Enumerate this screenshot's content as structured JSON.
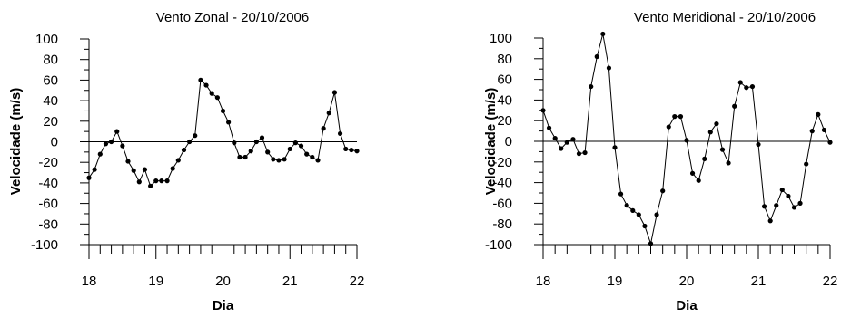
{
  "chart_data": [
    {
      "type": "line",
      "title": "Vento Zonal - 20/10/2006",
      "xlabel": "Dia",
      "ylabel": "Velocidade (m/s)",
      "xlim": [
        18,
        22
      ],
      "ylim": [
        -100,
        100
      ],
      "xticks": [
        18,
        19,
        20,
        21,
        22
      ],
      "yticks": [
        100,
        80,
        60,
        40,
        20,
        0,
        -20,
        -40,
        -60,
        -80,
        -100
      ],
      "zero_line": true,
      "series": [
        {
          "x": [
            18.0,
            18.083,
            18.167,
            18.25,
            18.333,
            18.417,
            18.5,
            18.583,
            18.667,
            18.75,
            18.833,
            18.917,
            19.0,
            19.083,
            19.167,
            19.25,
            19.333,
            19.417,
            19.5,
            19.583,
            19.667,
            19.75,
            19.833,
            19.917,
            20.0,
            20.083,
            20.167,
            20.25,
            20.333,
            20.417,
            20.5,
            20.583,
            20.667,
            20.75,
            20.833,
            20.917,
            21.0,
            21.083,
            21.167,
            21.25,
            21.333,
            21.417,
            21.5,
            21.583,
            21.667,
            21.75,
            21.833,
            21.917,
            22.0
          ],
          "y": [
            -35,
            -27,
            -12,
            -2,
            0,
            10,
            -4,
            -19,
            -28,
            -39,
            -27,
            -43,
            -38,
            -38,
            -38,
            -26,
            -18,
            -8,
            0,
            6,
            60,
            55,
            47,
            43,
            30,
            19,
            -1,
            -15,
            -15,
            -9,
            0,
            4,
            -10,
            -17,
            -18,
            -17,
            -7,
            -1,
            -4,
            -12,
            -15,
            -18,
            13,
            28,
            48,
            8,
            -7,
            -8,
            -9
          ]
        }
      ]
    },
    {
      "type": "line",
      "title": "Vento Meridional - 20/10/2006",
      "xlabel": "Dia",
      "ylabel": "Velocidade (m/s)",
      "xlim": [
        18,
        22
      ],
      "ylim": [
        -100,
        100
      ],
      "xticks": [
        18,
        19,
        20,
        21,
        22
      ],
      "yticks": [
        100,
        80,
        60,
        40,
        20,
        0,
        -20,
        -40,
        -60,
        -80,
        -100
      ],
      "zero_line": true,
      "series": [
        {
          "x": [
            18.0,
            18.083,
            18.167,
            18.25,
            18.333,
            18.417,
            18.5,
            18.583,
            18.667,
            18.75,
            18.833,
            18.917,
            19.0,
            19.083,
            19.167,
            19.25,
            19.333,
            19.417,
            19.5,
            19.583,
            19.667,
            19.75,
            19.833,
            19.917,
            20.0,
            20.083,
            20.167,
            20.25,
            20.333,
            20.417,
            20.5,
            20.583,
            20.667,
            20.75,
            20.833,
            20.917,
            21.0,
            21.083,
            21.167,
            21.25,
            21.333,
            21.417,
            21.5,
            21.583,
            21.667,
            21.75,
            21.833,
            21.917,
            22.0
          ],
          "y": [
            30,
            13,
            3,
            -7,
            -1,
            2,
            -12,
            -11,
            53,
            82,
            104,
            71,
            -6,
            -51,
            -62,
            -67,
            -71,
            -82,
            -99,
            -71,
            -48,
            14,
            24,
            24,
            1,
            -31,
            -38,
            -17,
            9,
            17,
            -8,
            -21,
            34,
            57,
            52,
            53,
            -3,
            -63,
            -77,
            -62,
            -47,
            -53,
            -64,
            -60,
            -22,
            10,
            26,
            11,
            -1
          ]
        }
      ]
    }
  ]
}
